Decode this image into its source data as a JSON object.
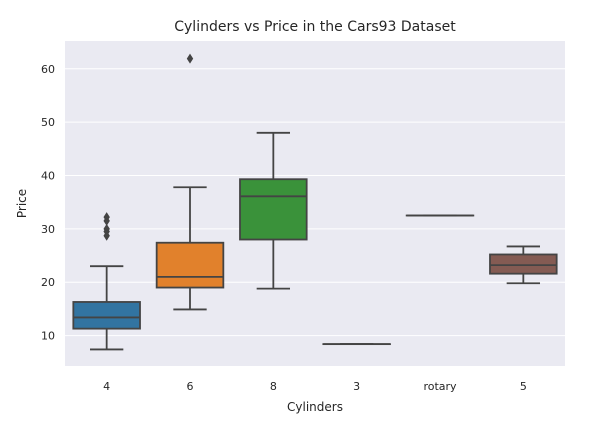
{
  "chart_data": {
    "type": "box",
    "title": "Cylinders vs Price in the Cars93 Dataset",
    "xlabel": "Cylinders",
    "ylabel": "Price",
    "ylim": [
      4.3,
      65.2
    ],
    "yticks": [
      10,
      20,
      30,
      40,
      50,
      60
    ],
    "grid": true,
    "style": {
      "background": "#eaeaf2",
      "grid_color": "#ffffff",
      "line_color": "#444444"
    },
    "categories": [
      "4",
      "6",
      "8",
      "3",
      "rotary",
      "5"
    ],
    "boxes": [
      {
        "category": "4",
        "color": "#3274a1",
        "whisker_low": 7.4,
        "q1": 11.3,
        "median": 13.4,
        "q3": 16.3,
        "whisker_high": 23.0,
        "outliers": [
          28.7,
          29.5,
          30.0,
          31.5,
          32.2
        ]
      },
      {
        "category": "6",
        "color": "#e1812c",
        "whisker_low": 14.9,
        "q1": 19.0,
        "median": 21.0,
        "q3": 27.4,
        "whisker_high": 37.8,
        "outliers": [
          61.9
        ]
      },
      {
        "category": "8",
        "color": "#3a923a",
        "whisker_low": 18.8,
        "q1": 28.0,
        "median": 36.1,
        "q3": 39.3,
        "whisker_high": 48.0,
        "outliers": []
      },
      {
        "category": "3",
        "color": "#c03d3e",
        "whisker_low": 8.4,
        "q1": 8.4,
        "median": 8.4,
        "q3": 8.4,
        "whisker_high": 8.4,
        "outliers": []
      },
      {
        "category": "rotary",
        "color": "#9372b2",
        "whisker_low": 32.5,
        "q1": 32.5,
        "median": 32.5,
        "q3": 32.5,
        "whisker_high": 32.5,
        "outliers": []
      },
      {
        "category": "5",
        "color": "#845b53",
        "whisker_low": 19.8,
        "q1": 21.6,
        "median": 23.2,
        "q3": 25.2,
        "whisker_high": 26.7,
        "outliers": []
      }
    ]
  }
}
